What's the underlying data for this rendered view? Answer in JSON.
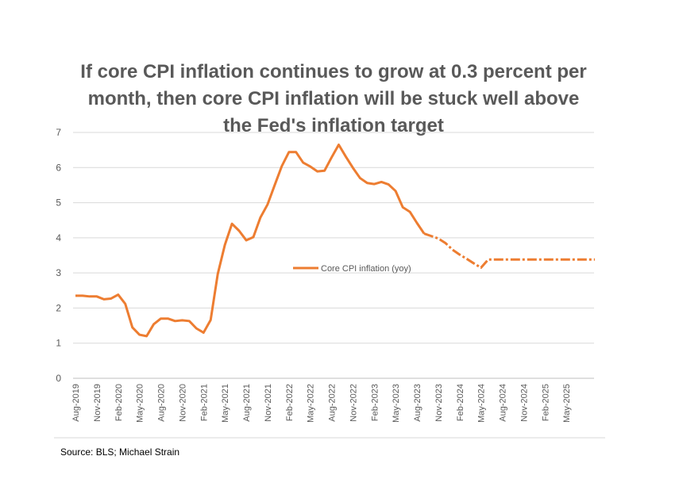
{
  "chart_data": {
    "type": "line",
    "title": "If core CPI inflation continues to grow at 0.3 percent per month, then core CPI inflation will be stuck well above the Fed's inflation target",
    "source": "Source: BLS; Michael Strain",
    "ylim": [
      0,
      7
    ],
    "yticks": [
      "0",
      "1",
      "2",
      "3",
      "4",
      "5",
      "6",
      "7"
    ],
    "x_tick_labels": [
      "Aug-2019",
      "Nov-2019",
      "Feb-2020",
      "May-2020",
      "Aug-2020",
      "Nov-2020",
      "Feb-2021",
      "May-2021",
      "Aug-2021",
      "Nov-2021",
      "Feb-2022",
      "May-2022",
      "Aug-2022",
      "Nov-2022",
      "Feb-2023",
      "May-2023",
      "Aug-2023",
      "Nov-2023",
      "Feb-2024",
      "May-2024",
      "Aug-2024",
      "Nov-2024",
      "Feb-2025",
      "May-2025"
    ],
    "grid": true,
    "legend_position": "center",
    "color": "#ED7D31",
    "series": [
      {
        "name": "Core CPI inflation (yoy)",
        "start_month": "Aug-2019",
        "actual_values": [
          2.35,
          2.35,
          2.33,
          2.33,
          2.25,
          2.27,
          2.38,
          2.12,
          1.45,
          1.24,
          1.2,
          1.54,
          1.7,
          1.7,
          1.63,
          1.65,
          1.63,
          1.42,
          1.3,
          1.66,
          2.97,
          3.8,
          4.4,
          4.2,
          3.93,
          4.02,
          4.58,
          4.95,
          5.5,
          6.04,
          6.44,
          6.44,
          6.14,
          6.03,
          5.89,
          5.91,
          6.29,
          6.65,
          6.31,
          5.99,
          5.7,
          5.56,
          5.53,
          5.59,
          5.52,
          5.33,
          4.87,
          4.74,
          4.42,
          4.12
        ],
        "projected_values": [
          4.12,
          4.05,
          3.98,
          3.85,
          3.66,
          3.52,
          3.4,
          3.27,
          3.15,
          3.38,
          3.38,
          3.38,
          3.38,
          3.38,
          3.38,
          3.38,
          3.38,
          3.38,
          3.38,
          3.38,
          3.38,
          3.38,
          3.38,
          3.38,
          3.38
        ]
      }
    ]
  }
}
